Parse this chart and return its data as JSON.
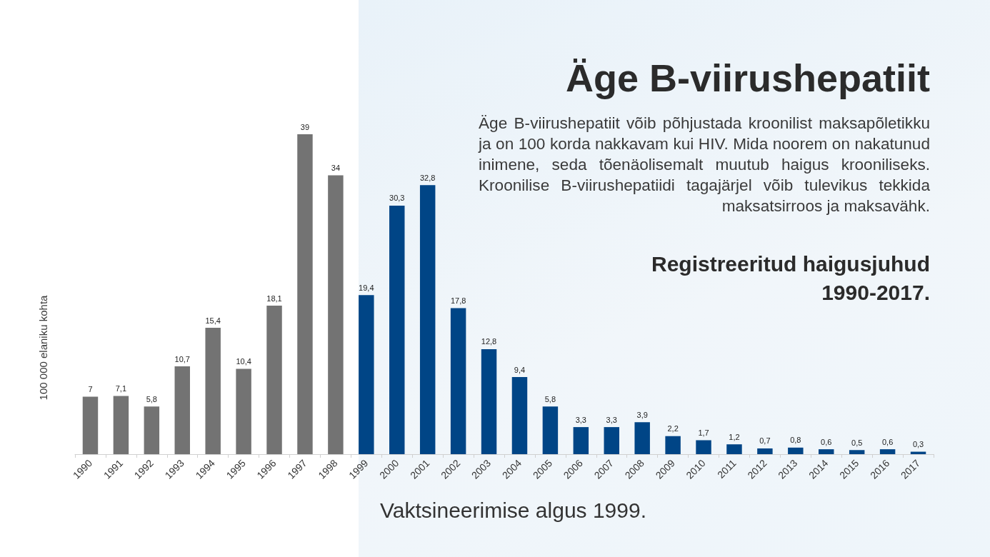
{
  "chart_data": {
    "type": "bar",
    "title": "Äge B-viirushepatiit",
    "subtitle": "Äge B-viirushepatiit võib põhjustada kroonilist maksapõletikku ja on 100 korda nakkavam kui HIV. Mida noorem on nakatunud inimene, seda tõenäolisemalt muutub haigus krooniliseks. Kroonilise B-viirushepatiidi tagajärjel võib tulevikus tekkida maksatsirroos ja maksavähk.",
    "ylabel": "100 000 elaniku kohta",
    "annotations": [
      "Registreeritud haigusjuhud 1990-2017.",
      "Vaktsineerimise algus 1999."
    ],
    "categories": [
      "1990",
      "1991",
      "1992",
      "1993",
      "1994",
      "1995",
      "1996",
      "1997",
      "1998",
      "1999",
      "2000",
      "2001",
      "2002",
      "2003",
      "2004",
      "2005",
      "2006",
      "2007",
      "2008",
      "2009",
      "2010",
      "2011",
      "2012",
      "2013",
      "2014",
      "2015",
      "2016",
      "2017"
    ],
    "values": [
      7,
      7.1,
      5.8,
      10.7,
      15.4,
      10.4,
      18.1,
      39,
      34,
      19.4,
      30.3,
      32.8,
      17.8,
      12.8,
      9.4,
      5.8,
      3.3,
      3.3,
      3.9,
      2.2,
      1.7,
      1.2,
      0.7,
      0.8,
      0.6,
      0.5,
      0.6,
      0.3
    ],
    "value_labels": [
      "7",
      "7,1",
      "5,8",
      "10,7",
      "15,4",
      "10,4",
      "18,1",
      "39",
      "34",
      "19,4",
      "30,3",
      "32,8",
      "17,8",
      "12,8",
      "9,4",
      "5,8",
      "3,3",
      "3,3",
      "3,9",
      "2,2",
      "1,7",
      "1,2",
      "0,7",
      "0,8",
      "0,6",
      "0,5",
      "0,6",
      "0,3"
    ],
    "colors": [
      "#737373",
      "#737373",
      "#737373",
      "#737373",
      "#737373",
      "#737373",
      "#737373",
      "#737373",
      "#737373",
      "#004586",
      "#004586",
      "#004586",
      "#004586",
      "#004586",
      "#004586",
      "#004586",
      "#004586",
      "#004586",
      "#004586",
      "#004586",
      "#004586",
      "#004586",
      "#004586",
      "#004586",
      "#004586",
      "#004586",
      "#004586",
      "#004586"
    ]
  }
}
